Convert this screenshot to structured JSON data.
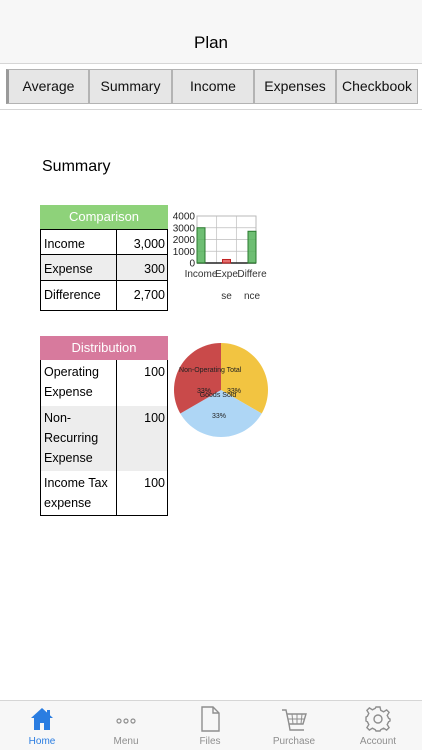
{
  "header": {
    "title": "Plan"
  },
  "tabs": [
    {
      "label": "Average"
    },
    {
      "label": "Summary"
    },
    {
      "label": "Income"
    },
    {
      "label": "Expenses"
    },
    {
      "label": "Checkbook"
    }
  ],
  "section": {
    "title": "Summary"
  },
  "comparison": {
    "header": "Comparison",
    "rows": [
      {
        "label": "Income",
        "value": "3,000"
      },
      {
        "label": "Expense",
        "value": "300"
      },
      {
        "label": "Difference",
        "value": "2,700"
      }
    ]
  },
  "distribution": {
    "header": "Distribution",
    "rows": [
      {
        "label": "Operating Expense",
        "value": "100"
      },
      {
        "label": "Non-Recurring Expense",
        "value": "100"
      },
      {
        "label": "Income Tax expense",
        "value": "100"
      }
    ]
  },
  "chart_data": [
    {
      "type": "bar",
      "categories": [
        "Income",
        "Expense",
        "Difference"
      ],
      "tick_text": [
        "Income",
        "Expe",
        "Differe"
      ],
      "wrap_text": [
        "",
        "se",
        "nce"
      ],
      "values": [
        3000,
        300,
        2700
      ],
      "ylim": [
        0,
        4000
      ],
      "yticks": [
        0,
        1000,
        2000,
        3000,
        4000
      ],
      "grid": true,
      "colors": {
        "Income": "#55b35a",
        "Expense": "#e05757",
        "Difference": "#55b35a"
      }
    },
    {
      "type": "pie",
      "slices": [
        {
          "label": "Non-Operating",
          "value": 100,
          "pct": "33%",
          "color": "#c94a4a"
        },
        {
          "label": "Goods Sold",
          "value": 100,
          "pct": "33%",
          "color": "#aed6f5"
        },
        {
          "label": "Total",
          "value": 100,
          "pct": "33%",
          "color": "#f2c441"
        }
      ]
    }
  ],
  "bottom_tabs": [
    {
      "label": "Home",
      "icon": "home-icon",
      "active": true
    },
    {
      "label": "Menu",
      "icon": "ellipsis-icon"
    },
    {
      "label": "Files",
      "icon": "file-icon"
    },
    {
      "label": "Purchase",
      "icon": "cart-icon"
    },
    {
      "label": "Account",
      "icon": "gear-icon"
    }
  ],
  "colors": {
    "accent": "#2a7de1",
    "comparison_header": "#8ed27a",
    "distribution_header": "#d77a9d"
  }
}
